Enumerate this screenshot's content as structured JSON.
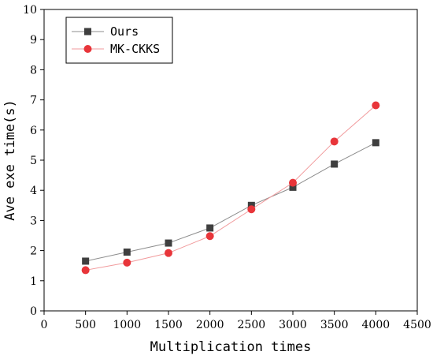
{
  "chart_data": {
    "type": "line",
    "xlabel": "Multiplication times",
    "ylabel": "Ave exe time(s)",
    "xlim": [
      0,
      4500
    ],
    "ylim": [
      0,
      10
    ],
    "xticks": [
      0,
      500,
      1000,
      1500,
      2000,
      2500,
      3000,
      3500,
      4000,
      4500
    ],
    "yticks": [
      0,
      1,
      2,
      3,
      4,
      5,
      6,
      7,
      8,
      9,
      10
    ],
    "x": [
      500,
      1000,
      1500,
      2000,
      2500,
      3000,
      3500,
      4000
    ],
    "grid": false,
    "legend_position": "top-left",
    "series": [
      {
        "name": "Ours",
        "marker": "square",
        "marker_color": "#3f3f3f",
        "line_color": "#8c8c8c",
        "values": [
          1.65,
          1.95,
          2.25,
          2.75,
          3.5,
          4.1,
          4.87,
          5.58
        ]
      },
      {
        "name": "MK-CKKS",
        "marker": "circle",
        "marker_color": "#e8353a",
        "line_color": "#f19a9c",
        "values": [
          1.35,
          1.6,
          1.92,
          2.48,
          3.37,
          4.25,
          5.62,
          6.82
        ]
      }
    ]
  }
}
